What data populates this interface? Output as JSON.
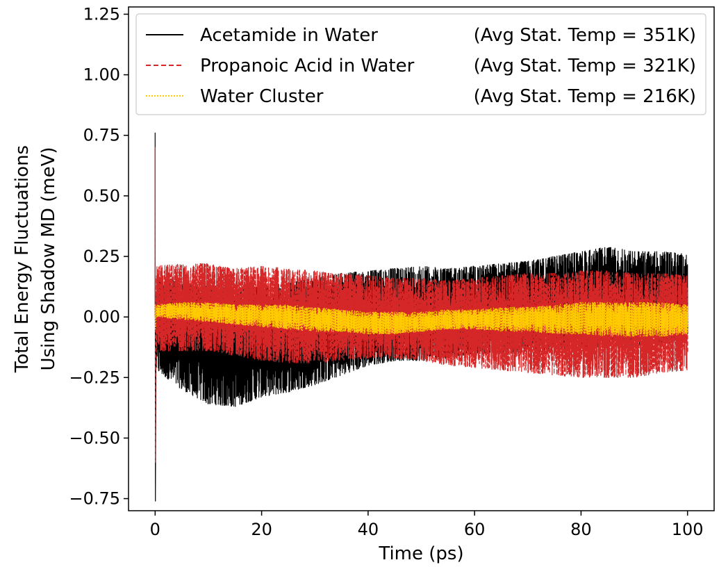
{
  "chart_data": {
    "type": "line",
    "title": "",
    "xlabel": "Time (ps)",
    "ylabel_line1": "Total Energy Fluctuations",
    "ylabel_line2": "Using Shadow MD (meV)",
    "xlim": [
      -5,
      105
    ],
    "ylim": [
      -0.8,
      1.28
    ],
    "x_ticks": [
      0,
      20,
      40,
      60,
      80,
      100
    ],
    "x_tick_labels": [
      "0",
      "20",
      "40",
      "60",
      "80",
      "100"
    ],
    "y_ticks": [
      -0.75,
      -0.5,
      -0.25,
      0.0,
      0.25,
      0.5,
      0.75,
      1.0,
      1.25
    ],
    "y_tick_labels": [
      "−0.75",
      "−0.50",
      "−0.25",
      "0.00",
      "0.25",
      "0.50",
      "0.75",
      "1.00",
      "1.25"
    ],
    "grid": false,
    "legend_position": "top-right",
    "series": [
      {
        "name": "Acetamide in Water",
        "temp_label": "(Avg Stat. Temp = 351K)",
        "color": "#000000",
        "style": "solid",
        "initial_spike": [
          0.76,
          -0.76
        ],
        "band_x": [
          0.2,
          5,
          10,
          15,
          20,
          25,
          30,
          35,
          40,
          45,
          50,
          55,
          60,
          65,
          70,
          75,
          80,
          85,
          90,
          95,
          100
        ],
        "band_upper": [
          0.16,
          0.15,
          0.13,
          0.12,
          0.13,
          0.14,
          0.16,
          0.18,
          0.19,
          0.2,
          0.21,
          0.2,
          0.21,
          0.22,
          0.23,
          0.25,
          0.27,
          0.29,
          0.27,
          0.27,
          0.26
        ],
        "band_lower": [
          -0.22,
          -0.3,
          -0.36,
          -0.37,
          -0.33,
          -0.31,
          -0.28,
          -0.24,
          -0.2,
          -0.18,
          -0.18,
          -0.17,
          -0.15,
          -0.15,
          -0.15,
          -0.14,
          -0.13,
          -0.12,
          -0.12,
          -0.11,
          -0.1
        ]
      },
      {
        "name": "Propanoic Acid in Water",
        "temp_label": "(Avg Stat. Temp = 321K)",
        "color": "#d62728",
        "style": "dashed",
        "initial_spike": [
          0.7,
          -0.6
        ],
        "band_x": [
          0.2,
          5,
          10,
          15,
          20,
          25,
          30,
          35,
          40,
          45,
          50,
          55,
          60,
          65,
          70,
          75,
          80,
          85,
          90,
          95,
          100
        ],
        "band_upper": [
          0.21,
          0.22,
          0.22,
          0.2,
          0.21,
          0.2,
          0.19,
          0.18,
          0.17,
          0.16,
          0.16,
          0.15,
          0.16,
          0.17,
          0.18,
          0.18,
          0.19,
          0.19,
          0.18,
          0.18,
          0.17
        ],
        "band_lower": [
          -0.14,
          -0.14,
          -0.14,
          -0.16,
          -0.18,
          -0.19,
          -0.19,
          -0.18,
          -0.17,
          -0.17,
          -0.18,
          -0.2,
          -0.21,
          -0.22,
          -0.23,
          -0.24,
          -0.25,
          -0.25,
          -0.25,
          -0.23,
          -0.22
        ]
      },
      {
        "name": "Water Cluster",
        "temp_label": "(Avg Stat. Temp = 216K)",
        "color": "#ffcc00",
        "style": "dotted",
        "initial_spike": [
          0.05,
          -0.05
        ],
        "band_x": [
          0.2,
          5,
          10,
          15,
          20,
          25,
          30,
          35,
          40,
          45,
          50,
          55,
          60,
          65,
          70,
          75,
          80,
          85,
          90,
          95,
          100
        ],
        "band_upper": [
          0.05,
          0.06,
          0.06,
          0.05,
          0.05,
          0.05,
          0.04,
          0.03,
          0.02,
          0.02,
          0.02,
          0.03,
          0.03,
          0.04,
          0.04,
          0.05,
          0.06,
          0.06,
          0.06,
          0.06,
          0.05
        ],
        "band_lower": [
          0.0,
          -0.01,
          -0.02,
          -0.03,
          -0.04,
          -0.05,
          -0.06,
          -0.06,
          -0.07,
          -0.07,
          -0.06,
          -0.05,
          -0.05,
          -0.06,
          -0.06,
          -0.07,
          -0.07,
          -0.08,
          -0.08,
          -0.08,
          -0.07
        ]
      }
    ]
  }
}
